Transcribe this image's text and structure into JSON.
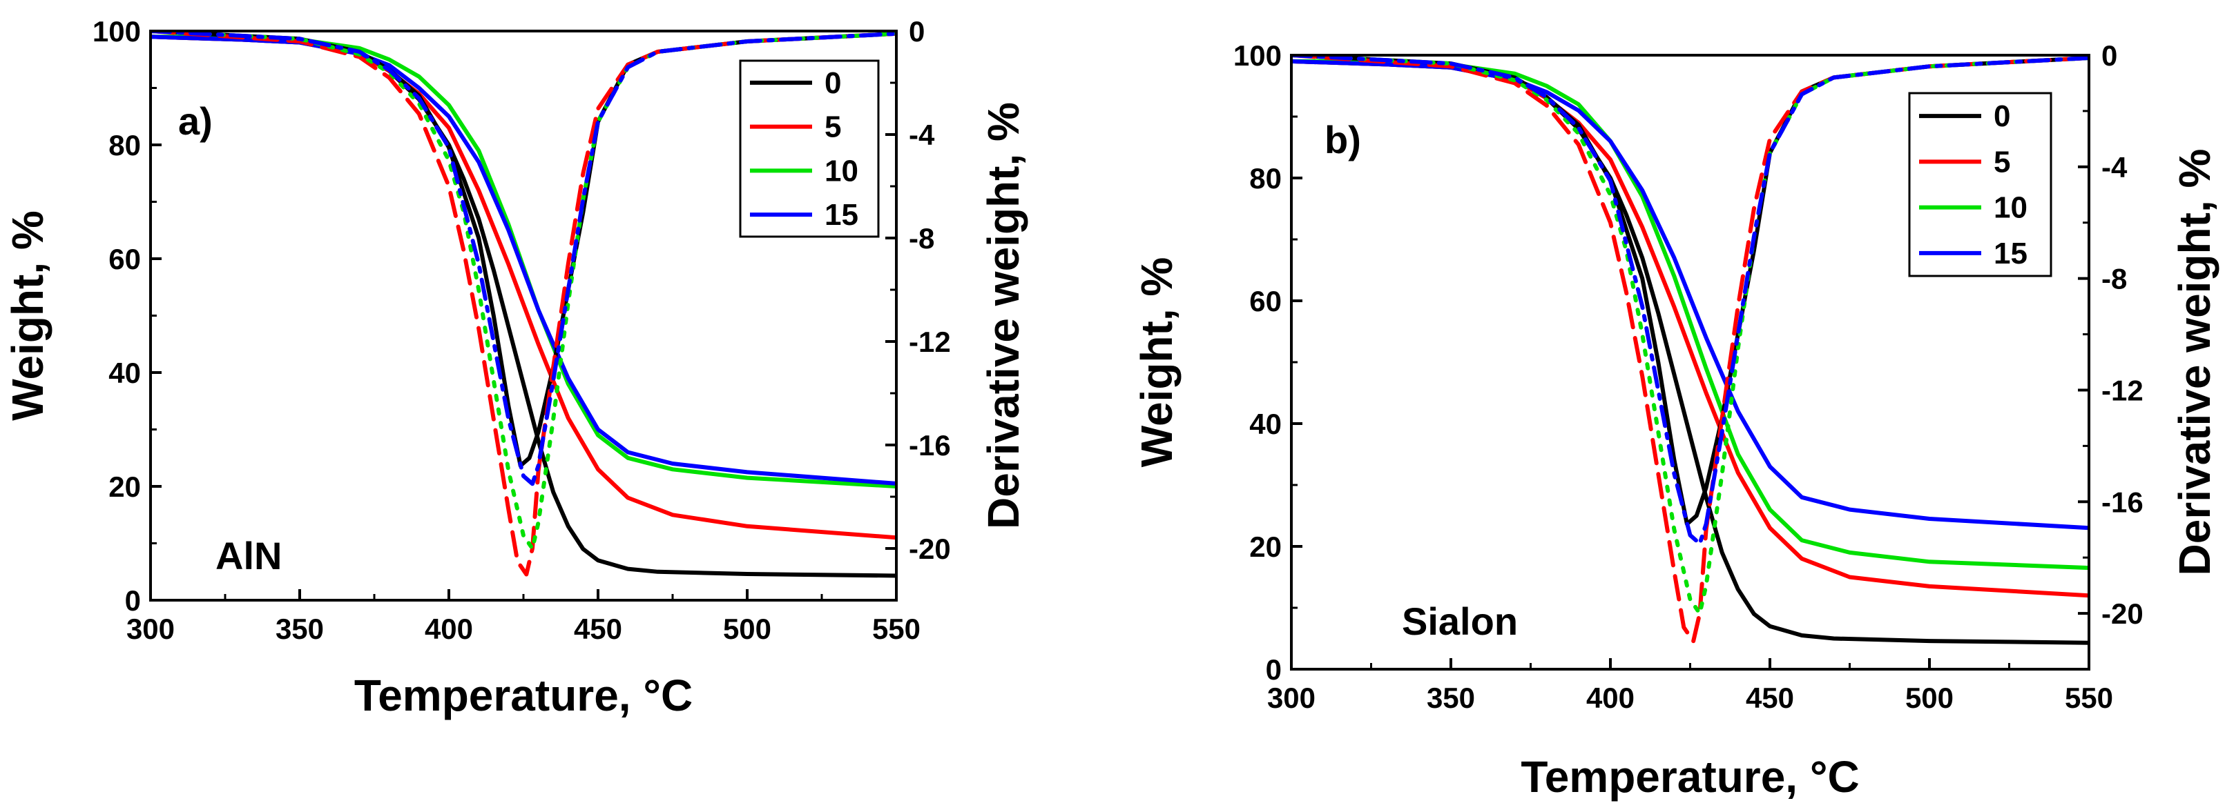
{
  "chart_data": [
    {
      "id": "panel-a",
      "type": "line",
      "panel_label": "a)",
      "annotation": "AlN",
      "xlabel": "Temperature, °C",
      "ylabel": "Weight, %",
      "y2label": "Derivative weight, %",
      "xlim": [
        300,
        550
      ],
      "ylim": [
        0,
        100
      ],
      "y2lim": [
        -22,
        0
      ],
      "xticks": [
        300,
        350,
        400,
        450,
        500,
        550
      ],
      "yticks": [
        0,
        20,
        40,
        60,
        80,
        100
      ],
      "y2ticks": [
        0,
        -4,
        -8,
        -12,
        -16,
        -20
      ],
      "legend": {
        "position": "top-right",
        "entries": [
          "0",
          "5",
          "10",
          "15"
        ]
      },
      "series": [
        {
          "name": "0",
          "kind": "weight",
          "color": "#000000",
          "style": "solid",
          "x": [
            300,
            330,
            350,
            370,
            380,
            390,
            400,
            405,
            410,
            415,
            420,
            425,
            430,
            435,
            440,
            445,
            450,
            460,
            470,
            500,
            550
          ],
          "y": [
            99,
            98.5,
            98,
            96,
            93,
            88,
            80,
            74,
            67,
            58,
            48,
            38,
            28,
            19,
            13,
            9,
            7,
            5.5,
            5,
            4.6,
            4.3
          ]
        },
        {
          "name": "5",
          "kind": "weight",
          "color": "#ff0000",
          "style": "solid",
          "x": [
            300,
            330,
            350,
            370,
            380,
            390,
            400,
            410,
            420,
            430,
            440,
            450,
            460,
            475,
            500,
            550
          ],
          "y": [
            99,
            98.5,
            98,
            96,
            93,
            89,
            83,
            72,
            59,
            45,
            32,
            23,
            18,
            15,
            13,
            11
          ]
        },
        {
          "name": "10",
          "kind": "weight",
          "color": "#00e000",
          "style": "solid",
          "x": [
            300,
            330,
            350,
            370,
            380,
            390,
            400,
            410,
            420,
            430,
            440,
            450,
            460,
            475,
            500,
            550
          ],
          "y": [
            99,
            99,
            98.5,
            97,
            95,
            92,
            87,
            79,
            66,
            51,
            38,
            29,
            25,
            23,
            21.5,
            20
          ]
        },
        {
          "name": "15",
          "kind": "weight",
          "color": "#0000ff",
          "style": "solid",
          "x": [
            300,
            330,
            350,
            370,
            380,
            390,
            400,
            410,
            420,
            430,
            440,
            450,
            460,
            475,
            500,
            550
          ],
          "y": [
            99,
            98.5,
            98,
            96,
            94,
            90,
            85,
            77,
            65,
            51,
            39,
            30,
            26,
            24,
            22.5,
            20.5
          ]
        },
        {
          "name": "0-dtg",
          "kind": "derivative",
          "color": "#000000",
          "style": "solid",
          "x": [
            300,
            350,
            370,
            380,
            390,
            400,
            410,
            415,
            420,
            424,
            427,
            430,
            435,
            440,
            445,
            450,
            460,
            470,
            500,
            550
          ],
          "y": [
            0,
            -0.3,
            -0.8,
            -1.5,
            -2.5,
            -4.5,
            -8,
            -11,
            -14.5,
            -16.8,
            -16.5,
            -15.5,
            -13,
            -10,
            -7,
            -3.5,
            -1.3,
            -0.8,
            -0.4,
            -0.1
          ]
        },
        {
          "name": "5-dtg",
          "kind": "derivative",
          "color": "#ff0000",
          "style": "dash",
          "x": [
            300,
            350,
            370,
            380,
            390,
            400,
            405,
            410,
            415,
            420,
            423,
            426,
            428,
            430,
            435,
            440,
            445,
            450,
            460,
            470,
            500,
            550
          ],
          "y": [
            0,
            -0.4,
            -1,
            -1.8,
            -3.2,
            -6,
            -8.5,
            -11.5,
            -15,
            -18.5,
            -20.5,
            -21,
            -20,
            -17,
            -13,
            -9,
            -5.5,
            -3,
            -1.3,
            -0.8,
            -0.4,
            -0.1
          ]
        },
        {
          "name": "10-dtg",
          "kind": "derivative",
          "color": "#00e000",
          "style": "dot",
          "x": [
            300,
            350,
            370,
            380,
            390,
            400,
            405,
            410,
            415,
            420,
            425,
            428,
            430,
            435,
            440,
            445,
            450,
            460,
            470,
            500,
            550
          ],
          "y": [
            0,
            -0.3,
            -0.9,
            -1.6,
            -2.8,
            -5,
            -7,
            -10,
            -13.5,
            -17,
            -19.5,
            -20,
            -19,
            -15,
            -10.5,
            -6.5,
            -3.5,
            -1.4,
            -0.8,
            -0.4,
            -0.1
          ]
        },
        {
          "name": "15-dtg",
          "kind": "derivative",
          "color": "#0000ff",
          "style": "dashdot",
          "x": [
            300,
            350,
            370,
            380,
            390,
            400,
            410,
            415,
            420,
            425,
            428,
            430,
            435,
            440,
            445,
            450,
            460,
            470,
            500,
            550
          ],
          "y": [
            0,
            -0.3,
            -0.8,
            -1.5,
            -2.6,
            -4.5,
            -9,
            -12,
            -15,
            -17.2,
            -17.5,
            -16.8,
            -13.5,
            -10,
            -6.5,
            -3.5,
            -1.4,
            -0.8,
            -0.4,
            -0.1
          ]
        }
      ]
    },
    {
      "id": "panel-b",
      "type": "line",
      "panel_label": "b)",
      "annotation": "Sialon",
      "xlabel": "Temperature, °C",
      "ylabel": "Weight, %",
      "y2label": "Derivative weight, %",
      "xlim": [
        300,
        550
      ],
      "ylim": [
        0,
        100
      ],
      "y2lim": [
        -22,
        0
      ],
      "xticks": [
        300,
        350,
        400,
        450,
        500,
        550
      ],
      "yticks": [
        0,
        20,
        40,
        60,
        80,
        100
      ],
      "y2ticks": [
        0,
        -4,
        -8,
        -12,
        -16,
        -20
      ],
      "legend": {
        "position": "top-right",
        "entries": [
          "0",
          "5",
          "10",
          "15"
        ]
      },
      "series": [
        {
          "name": "0",
          "kind": "weight",
          "color": "#000000",
          "style": "solid",
          "x": [
            300,
            330,
            350,
            370,
            380,
            390,
            400,
            405,
            410,
            415,
            420,
            425,
            430,
            435,
            440,
            445,
            450,
            460,
            470,
            500,
            550
          ],
          "y": [
            99,
            98.5,
            98,
            96,
            93,
            88,
            80,
            74,
            67,
            58,
            48,
            38,
            28,
            19,
            13,
            9,
            7,
            5.5,
            5,
            4.6,
            4.3
          ]
        },
        {
          "name": "5",
          "kind": "weight",
          "color": "#ff0000",
          "style": "solid",
          "x": [
            300,
            330,
            350,
            370,
            380,
            390,
            400,
            410,
            420,
            430,
            440,
            450,
            460,
            475,
            500,
            550
          ],
          "y": [
            99,
            98.5,
            98,
            96,
            93,
            89,
            83,
            72,
            59,
            45,
            32,
            23,
            18,
            15,
            13.5,
            12
          ]
        },
        {
          "name": "10",
          "kind": "weight",
          "color": "#00e000",
          "style": "solid",
          "x": [
            300,
            330,
            350,
            370,
            380,
            390,
            400,
            410,
            420,
            430,
            440,
            450,
            460,
            475,
            500,
            550
          ],
          "y": [
            99,
            99,
            98.5,
            97,
            95,
            92,
            86,
            77,
            64,
            49,
            35,
            26,
            21,
            19,
            17.5,
            16.5
          ]
        },
        {
          "name": "15",
          "kind": "weight",
          "color": "#0000ff",
          "style": "solid",
          "x": [
            300,
            330,
            350,
            370,
            380,
            390,
            400,
            410,
            420,
            430,
            440,
            450,
            460,
            475,
            500,
            550
          ],
          "y": [
            99,
            98.5,
            98,
            96,
            94,
            91,
            86,
            78,
            67,
            54,
            42,
            33,
            28,
            26,
            24.5,
            23
          ]
        },
        {
          "name": "0-dtg",
          "kind": "derivative",
          "color": "#000000",
          "style": "solid",
          "x": [
            300,
            350,
            370,
            380,
            390,
            400,
            410,
            415,
            420,
            424,
            427,
            430,
            435,
            440,
            445,
            450,
            460,
            470,
            500,
            550
          ],
          "y": [
            0,
            -0.3,
            -0.8,
            -1.5,
            -2.5,
            -4.5,
            -8,
            -11,
            -14.5,
            -16.8,
            -16.5,
            -15.5,
            -13,
            -10,
            -7,
            -3.5,
            -1.3,
            -0.8,
            -0.4,
            -0.1
          ]
        },
        {
          "name": "5-dtg",
          "kind": "derivative",
          "color": "#ff0000",
          "style": "dash",
          "x": [
            300,
            350,
            370,
            380,
            390,
            400,
            405,
            410,
            415,
            420,
            423,
            426,
            428,
            430,
            435,
            440,
            445,
            450,
            460,
            470,
            500,
            550
          ],
          "y": [
            0,
            -0.4,
            -1,
            -1.8,
            -3.2,
            -6,
            -8.5,
            -11.5,
            -15,
            -18.5,
            -20.5,
            -21,
            -20,
            -17,
            -13,
            -9,
            -5.5,
            -3,
            -1.3,
            -0.8,
            -0.4,
            -0.1
          ]
        },
        {
          "name": "10-dtg",
          "kind": "derivative",
          "color": "#00e000",
          "style": "dot",
          "x": [
            300,
            350,
            370,
            380,
            390,
            400,
            405,
            410,
            415,
            420,
            425,
            428,
            430,
            435,
            440,
            445,
            450,
            460,
            470,
            500,
            550
          ],
          "y": [
            0,
            -0.3,
            -0.9,
            -1.6,
            -2.8,
            -5,
            -7,
            -10,
            -13.5,
            -17,
            -19.5,
            -20,
            -19,
            -15,
            -10.5,
            -6.5,
            -3.5,
            -1.4,
            -0.8,
            -0.4,
            -0.1
          ]
        },
        {
          "name": "15-dtg",
          "kind": "derivative",
          "color": "#0000ff",
          "style": "dashdot",
          "x": [
            300,
            350,
            370,
            380,
            390,
            400,
            410,
            415,
            420,
            425,
            428,
            430,
            435,
            440,
            445,
            450,
            460,
            470,
            500,
            550
          ],
          "y": [
            0,
            -0.3,
            -0.8,
            -1.5,
            -2.6,
            -4.5,
            -9,
            -12,
            -15,
            -17.2,
            -17.5,
            -16.8,
            -13.5,
            -10,
            -6.5,
            -3.5,
            -1.4,
            -0.8,
            -0.4,
            -0.1
          ]
        }
      ]
    }
  ]
}
